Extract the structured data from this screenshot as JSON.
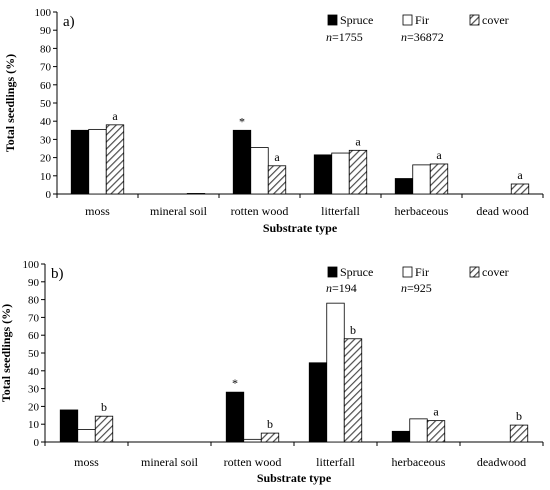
{
  "colors": {
    "spruce": "#000000",
    "fir": "#ffffff",
    "cover_hatch": "#4d4d4d",
    "axis": "#000000"
  },
  "chart_data": [
    {
      "type": "bar",
      "panel_label": "a)",
      "categories": [
        "moss",
        "mineral soil",
        "rotten wood",
        "litterfall",
        "herbaceous",
        "dead wood"
      ],
      "series": [
        {
          "name": "Spruce",
          "fill": "solid-black",
          "values": [
            35,
            0,
            35,
            21.5,
            8.5,
            0
          ]
        },
        {
          "name": "Fir",
          "fill": "white",
          "values": [
            35.5,
            0,
            25.5,
            22.5,
            16,
            0
          ]
        },
        {
          "name": "cover",
          "fill": "hatched",
          "values": [
            38,
            0.3,
            15.5,
            24,
            16.5,
            5.5
          ]
        }
      ],
      "legend_n": [
        "n=1755",
        "n=36872"
      ],
      "annotations": [
        {
          "category": "moss",
          "series": "cover",
          "text": "a"
        },
        {
          "category": "rotten wood",
          "series": "Spruce",
          "text": "*"
        },
        {
          "category": "rotten wood",
          "series": "cover",
          "text": "a"
        },
        {
          "category": "litterfall",
          "series": "cover",
          "text": "a"
        },
        {
          "category": "herbaceous",
          "series": "cover",
          "text": "a"
        },
        {
          "category": "dead wood",
          "series": "cover",
          "text": "a"
        }
      ],
      "xlabel": "Substrate type",
      "ylabel": "Total seedlings (%)",
      "ylim": [
        0,
        100
      ],
      "yticks": [
        0,
        10,
        20,
        30,
        40,
        50,
        60,
        70,
        80,
        90,
        100
      ],
      "grid": false,
      "legend_position": "top-right"
    },
    {
      "type": "bar",
      "panel_label": "b)",
      "categories": [
        "moss",
        "mineral soil",
        "rotten wood",
        "litterfall",
        "herbaceous",
        "deadwood"
      ],
      "series": [
        {
          "name": "Spruce",
          "fill": "solid-black",
          "values": [
            18,
            0,
            28,
            44.5,
            6,
            0
          ]
        },
        {
          "name": "Fir",
          "fill": "white",
          "values": [
            7,
            0,
            1.5,
            78,
            13,
            0
          ]
        },
        {
          "name": "cover",
          "fill": "hatched",
          "values": [
            14.5,
            0,
            5,
            58,
            12,
            9.5
          ]
        }
      ],
      "legend_n": [
        "n=194",
        "n=925"
      ],
      "annotations": [
        {
          "category": "moss",
          "series": "cover",
          "text": "b"
        },
        {
          "category": "rotten wood",
          "series": "Spruce",
          "text": "*"
        },
        {
          "category": "rotten wood",
          "series": "cover",
          "text": "b"
        },
        {
          "category": "litterfall",
          "series": "cover",
          "text": "b"
        },
        {
          "category": "herbaceous",
          "series": "cover",
          "text": "a"
        },
        {
          "category": "deadwood",
          "series": "cover",
          "text": "b"
        }
      ],
      "xlabel": "Substrate type",
      "ylabel": "Total seedlings (%)",
      "ylim": [
        0,
        100
      ],
      "yticks": [
        0,
        10,
        20,
        30,
        40,
        50,
        60,
        70,
        80,
        90,
        100
      ],
      "grid": false,
      "legend_position": "top-right"
    }
  ]
}
